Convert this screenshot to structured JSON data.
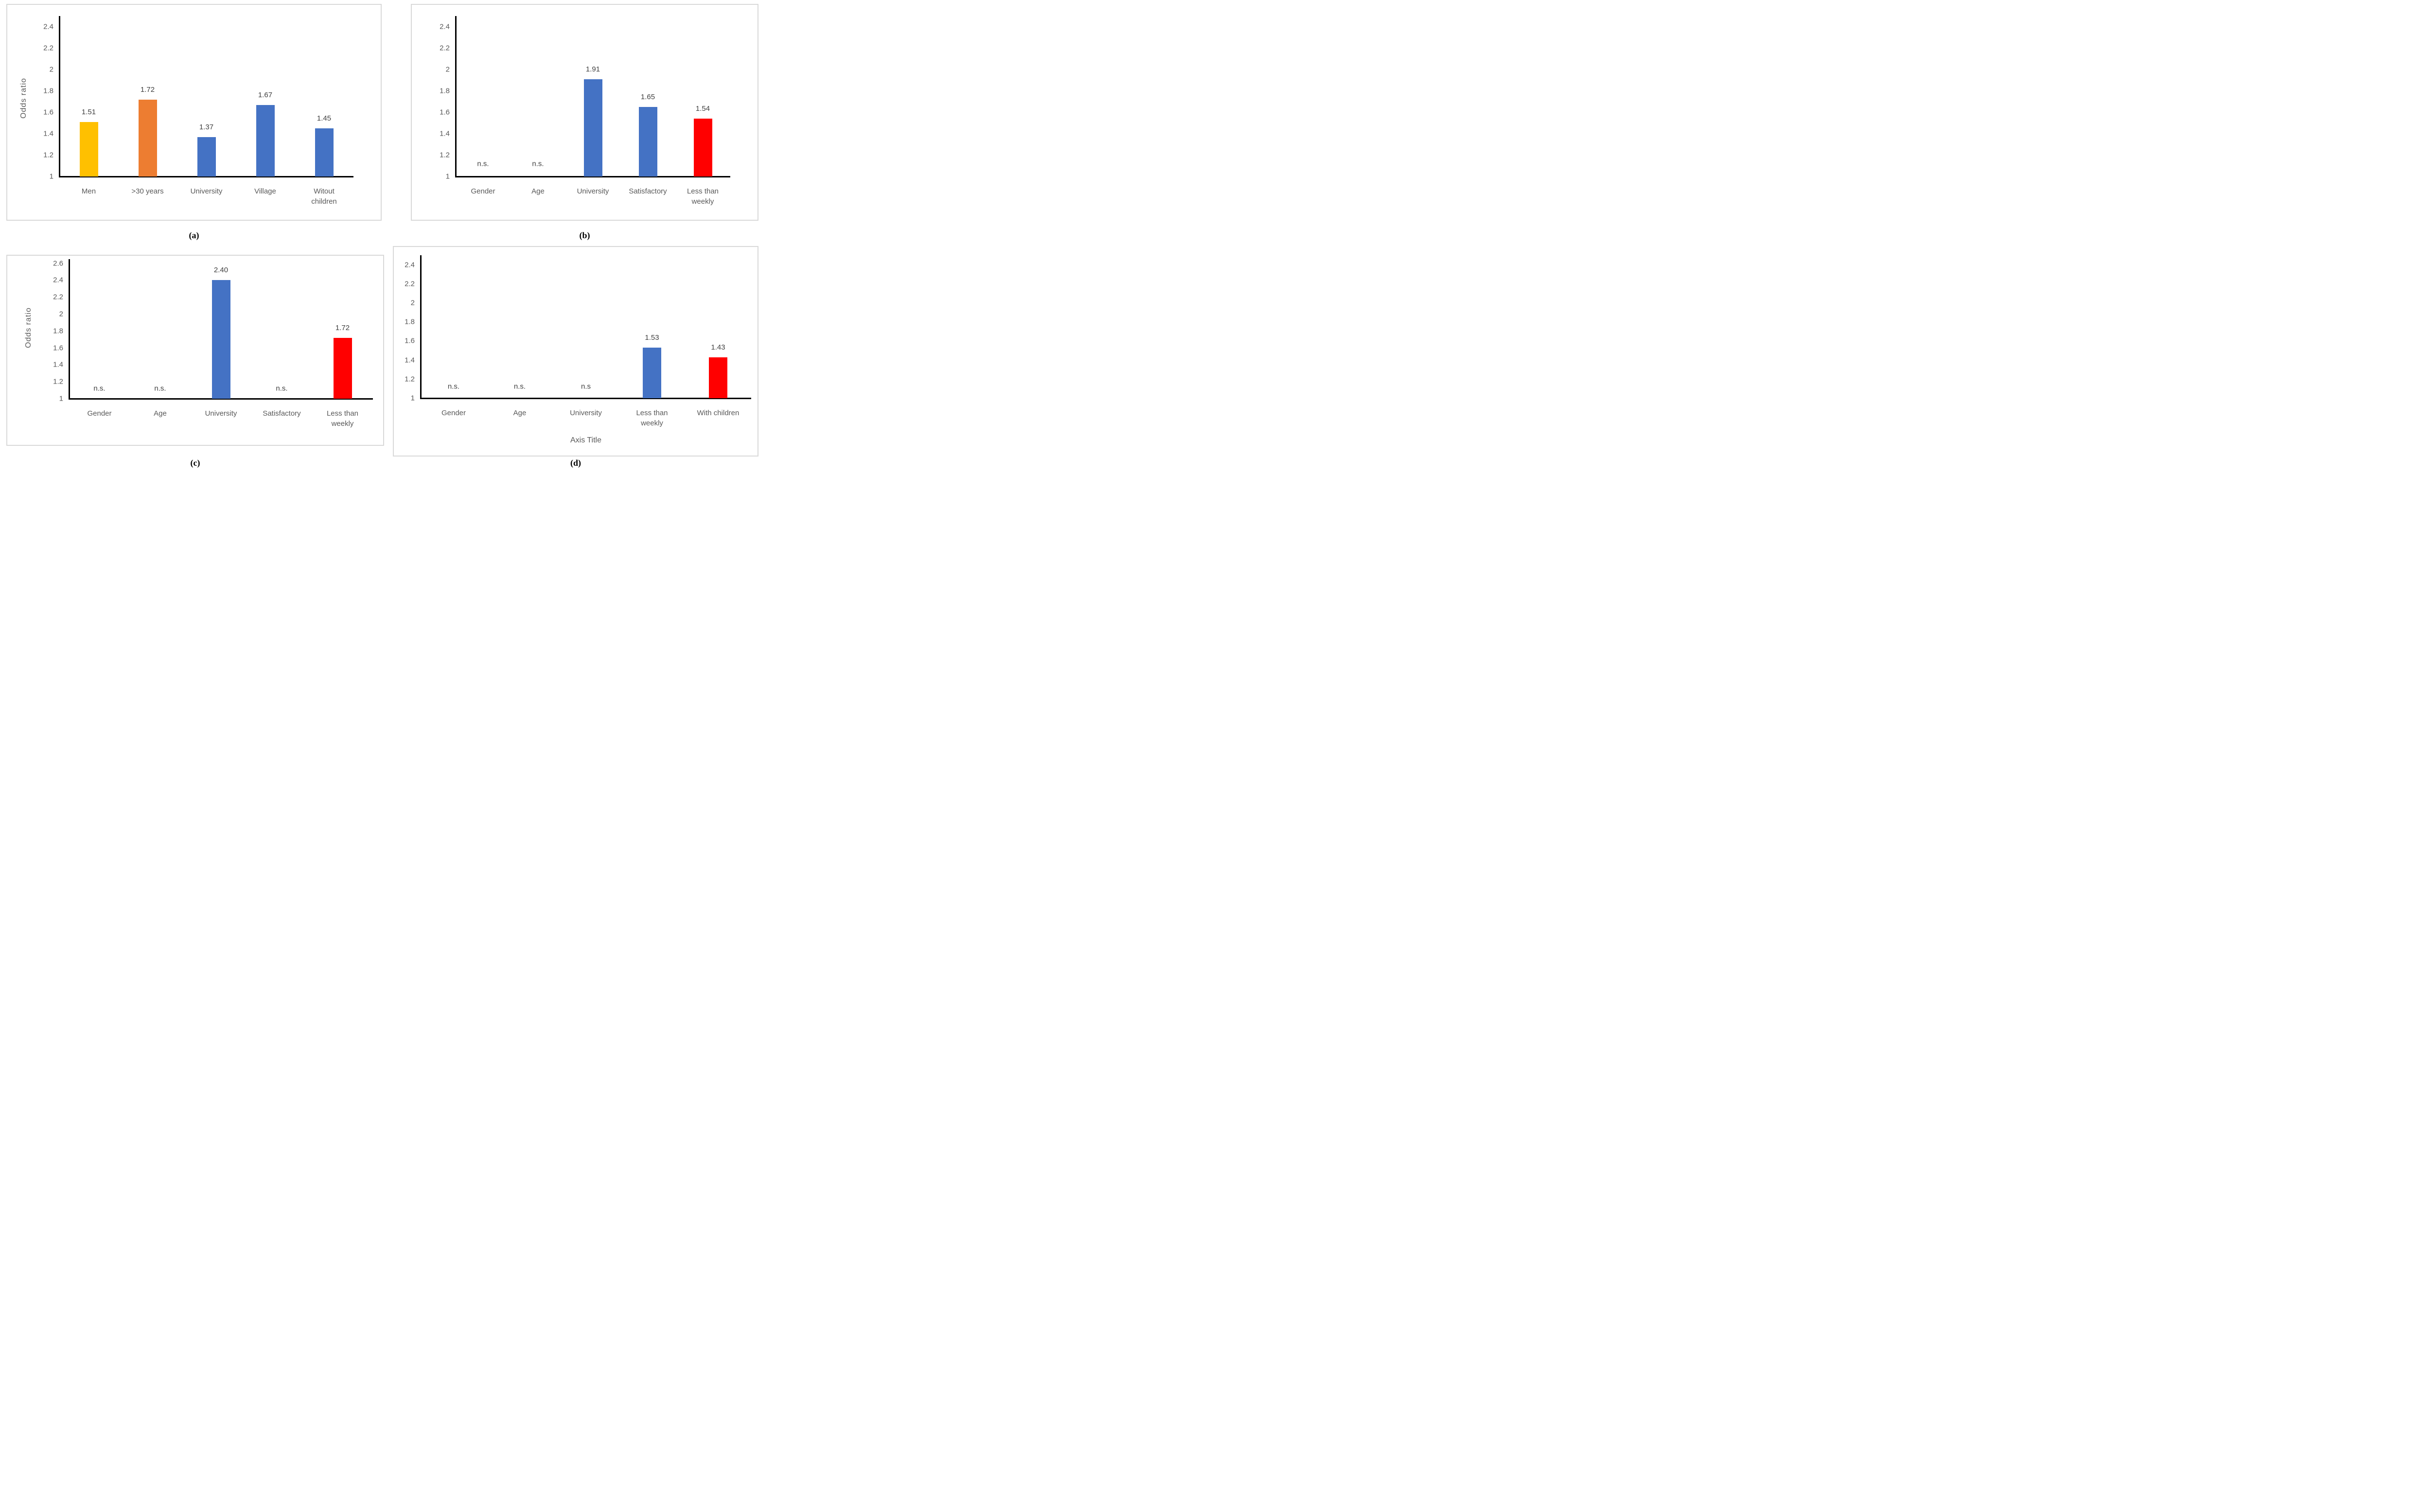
{
  "captions": {
    "a": "(a)",
    "b": "(b)",
    "c": "(c)",
    "d": "(d)"
  },
  "colors": {
    "blue": "#4472C4",
    "orange": "#ED7D31",
    "yellow": "#FFC000",
    "red": "#FF0000",
    "axis_line": "#000000",
    "tick_text": "#595959",
    "value_text": "#404040",
    "panel_border": "#D9D9D9"
  },
  "chart_data": [
    {
      "id": "a",
      "type": "bar",
      "title": "",
      "ylabel": "Odds ratio",
      "xlabel": "",
      "ylim": [
        1,
        2.5
      ],
      "yticks": [
        1,
        1.2,
        1.4,
        1.6,
        1.8,
        2,
        2.2,
        2.4
      ],
      "grid": false,
      "legend": null,
      "categories": [
        "Men",
        ">30 years",
        "University",
        "Village",
        "Witout\nchildren"
      ],
      "values": [
        1.51,
        1.72,
        1.37,
        1.67,
        1.45
      ],
      "value_labels": [
        "1.51",
        "1.72",
        "1.37",
        "1.67",
        "1.45"
      ],
      "ns_labels": [
        null,
        null,
        null,
        null,
        null
      ],
      "bar_colors": [
        "#FFC000",
        "#ED7D31",
        "#4472C4",
        "#4472C4",
        "#4472C4"
      ]
    },
    {
      "id": "b",
      "type": "bar",
      "title": "",
      "ylabel": "",
      "xlabel": "",
      "ylim": [
        1,
        2.5
      ],
      "yticks": [
        1,
        1.2,
        1.4,
        1.6,
        1.8,
        2,
        2.2,
        2.4
      ],
      "grid": false,
      "legend": null,
      "categories": [
        "Gender",
        "Age",
        "University",
        "Satisfactory",
        "Less than\nweekly"
      ],
      "values": [
        null,
        null,
        1.91,
        1.65,
        1.54
      ],
      "value_labels": [
        null,
        null,
        "1.91",
        "1.65",
        "1.54"
      ],
      "ns_labels": [
        "n.s.",
        "n.s.",
        null,
        null,
        null
      ],
      "bar_colors": [
        null,
        null,
        "#4472C4",
        "#4472C4",
        "#FF0000"
      ]
    },
    {
      "id": "c",
      "type": "bar",
      "title": "",
      "ylabel": "Odds ratio",
      "xlabel": "",
      "ylim": [
        1,
        2.65
      ],
      "yticks": [
        1,
        1.2,
        1.4,
        1.6,
        1.8,
        2,
        2.2,
        2.4,
        2.6
      ],
      "grid": false,
      "legend": null,
      "categories": [
        "Gender",
        "Age",
        "University",
        "Satisfactory",
        "Less than\nweekly"
      ],
      "values": [
        null,
        null,
        2.4,
        null,
        1.72
      ],
      "value_labels": [
        null,
        null,
        "2.40",
        null,
        "1.72"
      ],
      "ns_labels": [
        "n.s.",
        "n.s.",
        null,
        "n.s.",
        null
      ],
      "bar_colors": [
        null,
        null,
        "#4472C4",
        null,
        "#FF0000"
      ]
    },
    {
      "id": "d",
      "type": "bar",
      "title": "",
      "ylabel": "",
      "xlabel": "Axis Title",
      "ylim": [
        1,
        2.5
      ],
      "yticks": [
        1,
        1.2,
        1.4,
        1.6,
        1.8,
        2,
        2.2,
        2.4
      ],
      "grid": false,
      "legend": null,
      "categories": [
        "Gender",
        "Age",
        "University",
        "Less than\nweekly",
        "With children"
      ],
      "values": [
        null,
        null,
        null,
        1.53,
        1.43
      ],
      "value_labels": [
        null,
        null,
        null,
        "1.53",
        "1.43"
      ],
      "ns_labels": [
        "n.s.",
        "n.s.",
        "n.s",
        null,
        null
      ],
      "bar_colors": [
        null,
        null,
        null,
        "#4472C4",
        "#FF0000"
      ]
    }
  ]
}
